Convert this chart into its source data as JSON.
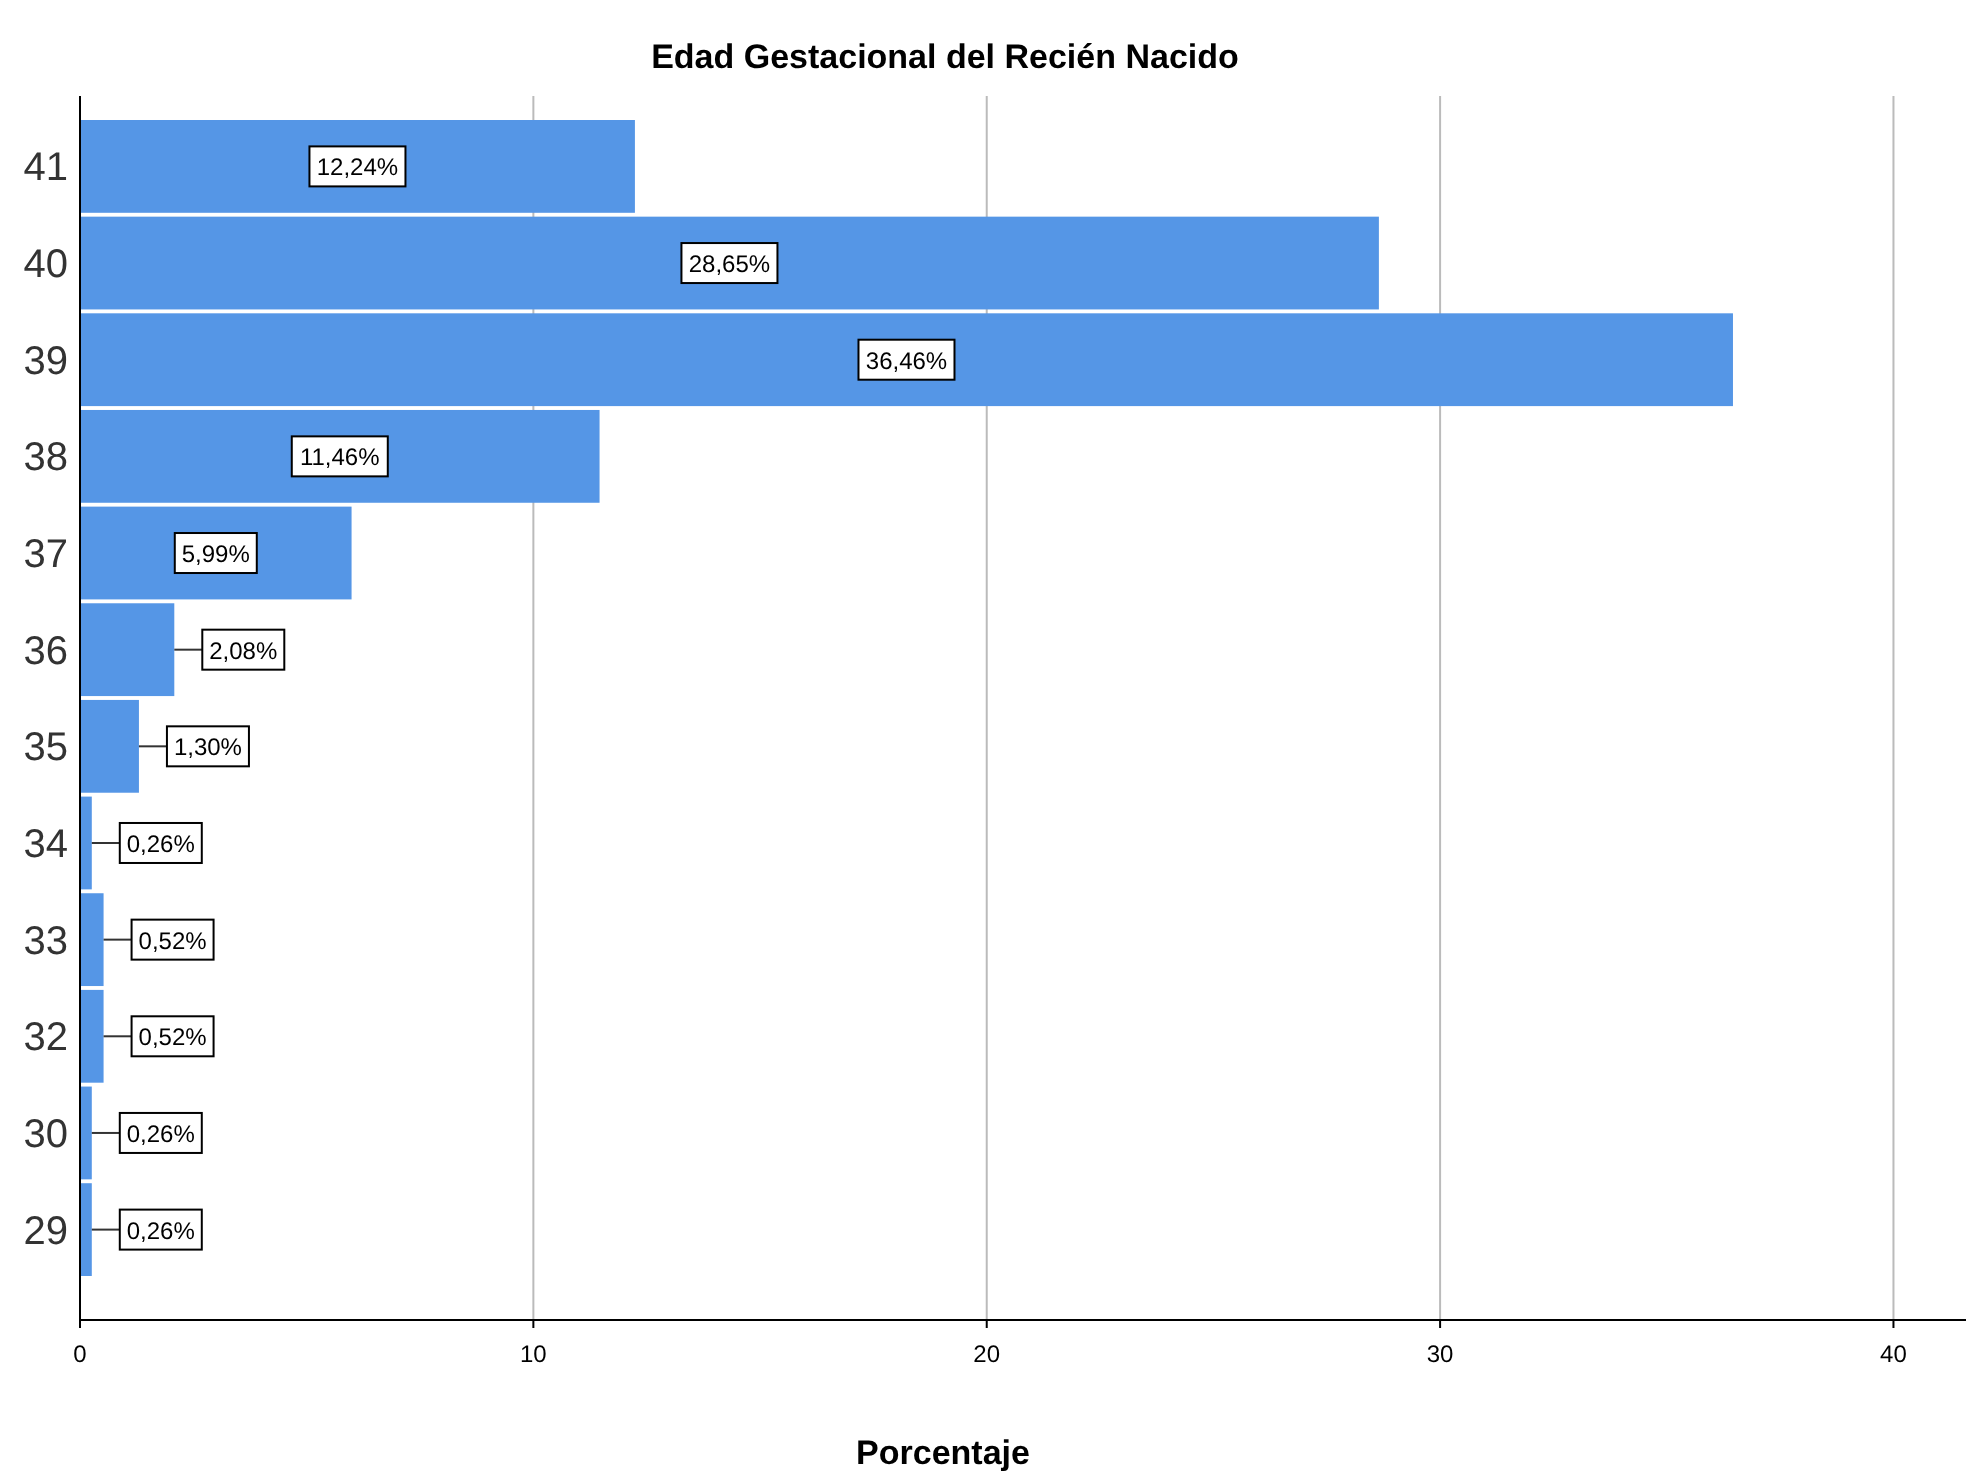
{
  "chart_data": {
    "type": "bar",
    "orientation": "horizontal",
    "title": "Edad Gestacional del Recién Nacido",
    "xlabel": "Porcentaje",
    "categories": [
      "41",
      "40",
      "39",
      "38",
      "37",
      "36",
      "35",
      "34",
      "33",
      "32",
      "30",
      "29"
    ],
    "values": [
      12.24,
      28.65,
      36.46,
      11.46,
      5.99,
      2.08,
      1.3,
      0.26,
      0.52,
      0.52,
      0.26,
      0.26
    ],
    "value_labels": [
      "12,24%",
      "28,65%",
      "36,46%",
      "11,46%",
      "5,99%",
      "2,08%",
      "1,30%",
      "0,26%",
      "0,52%",
      "0,52%",
      "0,26%",
      "0,26%"
    ],
    "color": "#5596e6",
    "xlim": [
      0,
      41.6
    ],
    "xticks": [
      0,
      10,
      20,
      30,
      40
    ],
    "grid": "x"
  }
}
